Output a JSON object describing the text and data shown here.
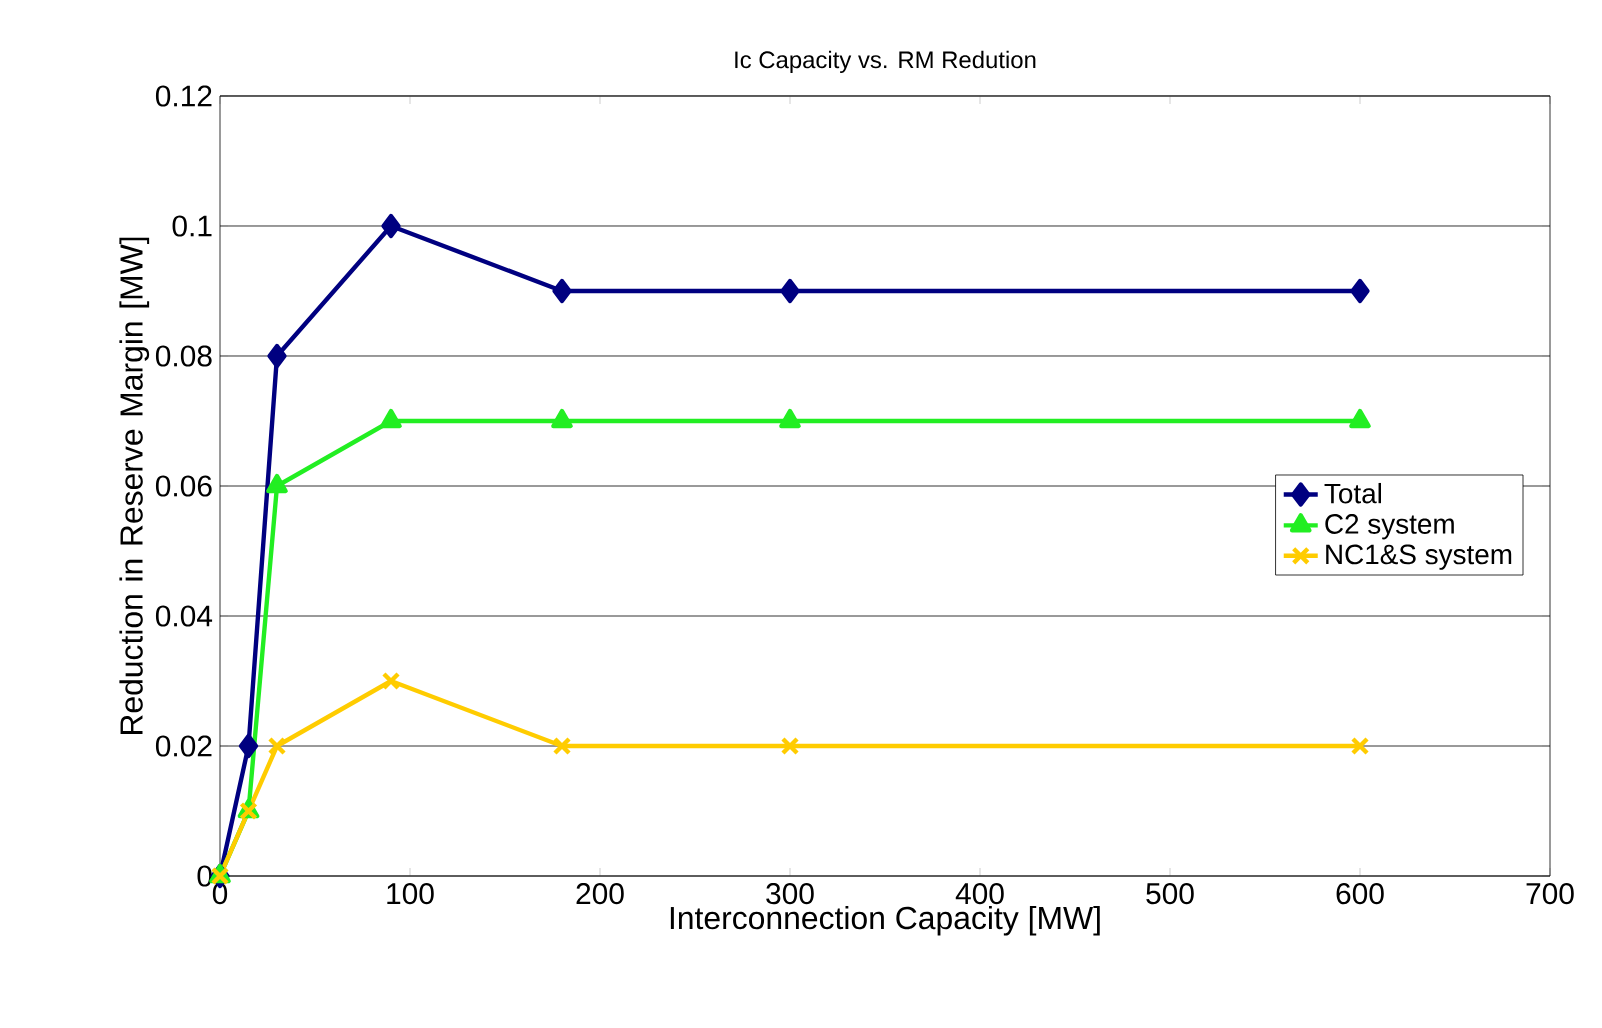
{
  "chart_data": {
    "type": "line",
    "title": "Ic Capacity vs. RM Redution",
    "xlabel": "Interconnection Capacity [MW]",
    "ylabel": "Reduction in Reserve Margin [MW]",
    "x": [
      0,
      15,
      30,
      90,
      180,
      300,
      600
    ],
    "series": [
      {
        "name": "Total",
        "color": "#000080",
        "marker": "diamond",
        "values": [
          0,
          0.02,
          0.08,
          0.1,
          0.09,
          0.09,
          0.09
        ]
      },
      {
        "name": "C2 system",
        "color": "#22ee22",
        "marker": "triangle",
        "values": [
          0,
          0.01,
          0.06,
          0.07,
          0.07,
          0.07,
          0.07
        ]
      },
      {
        "name": "NC1&S system",
        "color": "#ffcc00",
        "marker": "cross",
        "values": [
          0,
          0.01,
          0.02,
          0.03,
          0.02,
          0.02,
          0.02
        ]
      }
    ],
    "xlim": [
      0,
      700
    ],
    "xticks": [
      0,
      100,
      200,
      300,
      400,
      500,
      600,
      700
    ],
    "ylim": [
      0,
      0.12
    ],
    "yticks": [
      0,
      0.02,
      0.04,
      0.06,
      0.08,
      0.1,
      0.12
    ],
    "grid": "y",
    "legend": "right",
    "line_style": "solid"
  }
}
